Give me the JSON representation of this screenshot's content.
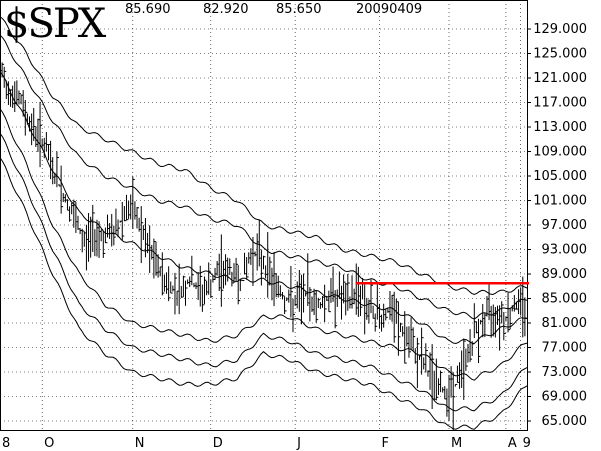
{
  "header": {
    "symbol": "$SPX",
    "high": "85.690",
    "low": "82.920",
    "close": "85.650",
    "date": "20090409"
  },
  "chart_data": {
    "type": "ohlc-bar",
    "title": "$SPX",
    "ylim": [
      65,
      131
    ],
    "y_ticks": [
      "129.000",
      "125.000",
      "121.000",
      "117.000",
      "113.000",
      "109.000",
      "105.000",
      "101.000",
      "97.000",
      "93.000",
      "89.000",
      "85.000",
      "81.000",
      "77.000",
      "73.000",
      "69.000",
      "65.000"
    ],
    "x_tick_labels": [
      "8",
      "O",
      "N",
      "D",
      "J",
      "F",
      "M",
      "A",
      "9"
    ],
    "price_path": [
      [
        0,
        122
      ],
      [
        4,
        119
      ],
      [
        8,
        117
      ],
      [
        12,
        113
      ],
      [
        16,
        111
      ],
      [
        20,
        106
      ],
      [
        24,
        102
      ],
      [
        28,
        98
      ],
      [
        32,
        94
      ],
      [
        36,
        96
      ],
      [
        40,
        95
      ],
      [
        44,
        96
      ],
      [
        48,
        100
      ],
      [
        52,
        98
      ],
      [
        56,
        93
      ],
      [
        60,
        90
      ],
      [
        64,
        87
      ],
      [
        68,
        86
      ],
      [
        72,
        88
      ],
      [
        76,
        86
      ],
      [
        80,
        87
      ],
      [
        84,
        90
      ],
      [
        88,
        89
      ],
      [
        92,
        88
      ],
      [
        96,
        93
      ],
      [
        100,
        91
      ],
      [
        104,
        88
      ],
      [
        108,
        85
      ],
      [
        112,
        84
      ],
      [
        116,
        86
      ],
      [
        120,
        84
      ],
      [
        124,
        85
      ],
      [
        128,
        86
      ],
      [
        132,
        84
      ],
      [
        136,
        87
      ],
      [
        140,
        83
      ],
      [
        144,
        82
      ],
      [
        148,
        83
      ],
      [
        152,
        80
      ],
      [
        156,
        77
      ],
      [
        160,
        75
      ],
      [
        164,
        72
      ],
      [
        168,
        70
      ],
      [
        172,
        70
      ],
      [
        176,
        74
      ],
      [
        180,
        79
      ],
      [
        184,
        82
      ],
      [
        188,
        83
      ],
      [
        192,
        82
      ],
      [
        196,
        84
      ],
      [
        200,
        84
      ]
    ],
    "x_tick_index": [
      0,
      20,
      63,
      100,
      140,
      180,
      213,
      240,
      247
    ],
    "upper_outer_band": [
      [
        0,
        131
      ],
      [
        10,
        125
      ],
      [
        20,
        118
      ],
      [
        30,
        113
      ],
      [
        40,
        111
      ],
      [
        50,
        109
      ],
      [
        60,
        107
      ],
      [
        70,
        106
      ],
      [
        80,
        103
      ],
      [
        90,
        101
      ],
      [
        100,
        97
      ],
      [
        110,
        96
      ],
      [
        120,
        95
      ],
      [
        130,
        93
      ],
      [
        140,
        92
      ],
      [
        150,
        91
      ],
      [
        160,
        89
      ],
      [
        170,
        87
      ],
      [
        180,
        86
      ],
      [
        190,
        86
      ],
      [
        200,
        87
      ]
    ],
    "upper_inner_band": [
      [
        0,
        128
      ],
      [
        10,
        121
      ],
      [
        20,
        114
      ],
      [
        30,
        108
      ],
      [
        40,
        105
      ],
      [
        50,
        103
      ],
      [
        60,
        101
      ],
      [
        70,
        100
      ],
      [
        80,
        98
      ],
      [
        90,
        97
      ],
      [
        100,
        93
      ],
      [
        110,
        92
      ],
      [
        120,
        91
      ],
      [
        130,
        90
      ],
      [
        140,
        88
      ],
      [
        150,
        87
      ],
      [
        160,
        85
      ],
      [
        170,
        83
      ],
      [
        180,
        82
      ],
      [
        190,
        83
      ],
      [
        200,
        85
      ]
    ],
    "middle_band": [
      [
        0,
        122
      ],
      [
        10,
        114
      ],
      [
        20,
        106
      ],
      [
        30,
        99
      ],
      [
        40,
        96
      ],
      [
        50,
        94
      ],
      [
        60,
        92
      ],
      [
        70,
        90
      ],
      [
        80,
        89
      ],
      [
        90,
        88
      ],
      [
        100,
        88
      ],
      [
        110,
        87
      ],
      [
        120,
        86
      ],
      [
        130,
        85
      ],
      [
        140,
        84
      ],
      [
        150,
        83
      ],
      [
        160,
        81
      ],
      [
        170,
        78
      ],
      [
        180,
        78
      ],
      [
        190,
        80
      ],
      [
        200,
        82
      ]
    ],
    "lower_inner_band": [
      [
        0,
        116
      ],
      [
        10,
        107
      ],
      [
        20,
        97
      ],
      [
        30,
        89
      ],
      [
        40,
        84
      ],
      [
        50,
        81
      ],
      [
        60,
        80
      ],
      [
        70,
        79
      ],
      [
        80,
        78
      ],
      [
        90,
        79
      ],
      [
        100,
        82
      ],
      [
        110,
        82
      ],
      [
        120,
        80
      ],
      [
        130,
        79
      ],
      [
        140,
        78
      ],
      [
        150,
        77
      ],
      [
        160,
        76
      ],
      [
        170,
        73
      ],
      [
        180,
        72
      ],
      [
        190,
        74
      ],
      [
        200,
        78
      ]
    ],
    "lower_outer_band": [
      [
        0,
        112
      ],
      [
        10,
        103
      ],
      [
        20,
        93
      ],
      [
        30,
        84
      ],
      [
        40,
        80
      ],
      [
        50,
        77
      ],
      [
        60,
        76
      ],
      [
        70,
        75
      ],
      [
        80,
        74
      ],
      [
        90,
        75
      ],
      [
        100,
        79
      ],
      [
        110,
        78
      ],
      [
        120,
        76
      ],
      [
        130,
        75
      ],
      [
        140,
        74
      ],
      [
        150,
        72
      ],
      [
        160,
        70
      ],
      [
        170,
        67
      ],
      [
        180,
        67
      ],
      [
        190,
        69
      ],
      [
        200,
        74
      ]
    ],
    "lower_outer_band_2": [
      [
        0,
        108
      ],
      [
        10,
        99
      ],
      [
        20,
        89
      ],
      [
        30,
        80
      ],
      [
        40,
        76
      ],
      [
        50,
        73
      ],
      [
        60,
        72
      ],
      [
        70,
        71
      ],
      [
        80,
        71
      ],
      [
        90,
        72
      ],
      [
        100,
        76
      ],
      [
        110,
        75
      ],
      [
        120,
        73
      ],
      [
        130,
        72
      ],
      [
        140,
        71
      ],
      [
        150,
        69
      ],
      [
        160,
        67
      ],
      [
        170,
        64
      ],
      [
        180,
        64
      ],
      [
        190,
        66
      ],
      [
        200,
        71
      ]
    ],
    "resistance_line": {
      "y": 87.5,
      "x_start": 135,
      "x_end": 200,
      "color": "#ff0000"
    }
  }
}
